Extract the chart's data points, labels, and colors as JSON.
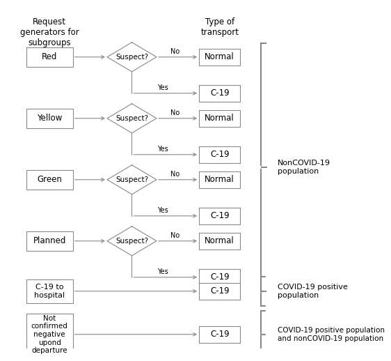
{
  "title_left": "Request\ngenerators for\nsubgroups",
  "title_right": "Type of\ntransport",
  "subgroups": [
    "Red",
    "Yellow",
    "Green",
    "Planned"
  ],
  "simple_subgroups": [
    {
      "label": "C-19 to\nhospital"
    },
    {
      "label": "Not\nconfirmed\nnegative\nupond\ndeparture"
    }
  ],
  "box_color": "#ffffff",
  "border_color": "#888888",
  "text_color": "#000000",
  "background_color": "#ffffff",
  "label_noncovid": "NonCOVID-19\npopulation",
  "label_covid": "COVID-19 positive\npopulation",
  "label_both": "COVID-19 positive population\nand nonCOVID-19 population"
}
